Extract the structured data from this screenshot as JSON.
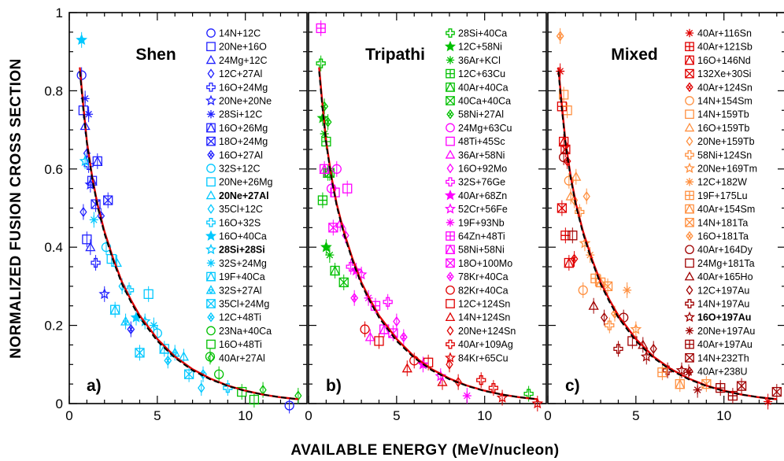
{
  "chart_data": {
    "type": "scatter",
    "ylabel": "NORMALIZED FUSION CROSS SECTION",
    "xlabel": "AVAILABLE ENERGY (MeV/nucleon)",
    "xlim": [
      0,
      13.5
    ],
    "ylim": [
      0,
      1
    ],
    "xticks": [
      {
        "value": 0,
        "label": "0"
      },
      {
        "value": 5,
        "label": "5"
      },
      {
        "value": 10,
        "label": "10"
      }
    ],
    "yticks": [
      {
        "value": 0,
        "label": "0"
      },
      {
        "value": 0.2,
        "label": "0.2"
      },
      {
        "value": 0.4,
        "label": "0.4"
      },
      {
        "value": 0.6,
        "label": "0.6"
      },
      {
        "value": 0.8,
        "label": "0.8"
      },
      {
        "value": 1,
        "label": "1"
      }
    ],
    "panels": [
      {
        "title": "Shen",
        "tag": "a)",
        "series": [
          {
            "name": "14N+12C",
            "marker": "circle",
            "color": "#2020ff"
          },
          {
            "name": "20Ne+16O",
            "marker": "square",
            "color": "#2020ff"
          },
          {
            "name": "24Mg+12C",
            "marker": "triangle",
            "color": "#2020ff"
          },
          {
            "name": "12C+27Al",
            "marker": "diamond",
            "color": "#2020ff"
          },
          {
            "name": "16O+24Mg",
            "marker": "cross",
            "color": "#2020ff"
          },
          {
            "name": "20Ne+20Ne",
            "marker": "star",
            "color": "#2020ff"
          },
          {
            "name": "28Si+12C",
            "marker": "asterisk",
            "color": "#2020ff"
          },
          {
            "name": "16O+26Mg",
            "marker": "square-tri",
            "color": "#2020ff"
          },
          {
            "name": "18O+24Mg",
            "marker": "square-x",
            "color": "#2020ff"
          },
          {
            "name": "16O+27Al",
            "marker": "diamond-x",
            "color": "#2020ff"
          },
          {
            "name": "32S+12C",
            "marker": "circle",
            "color": "#00c8ff"
          },
          {
            "name": "20Ne+26Mg",
            "marker": "square",
            "color": "#00c8ff"
          },
          {
            "name": "20Ne+27Al",
            "marker": "triangle",
            "color": "#00c8ff",
            "bold": true
          },
          {
            "name": "35Cl+12C",
            "marker": "diamond",
            "color": "#00c8ff"
          },
          {
            "name": "16O+32S",
            "marker": "cross",
            "color": "#00c8ff"
          },
          {
            "name": "16O+40Ca",
            "marker": "star-filled",
            "color": "#00c8ff"
          },
          {
            "name": "28Si+28Si",
            "marker": "star",
            "color": "#00c8ff",
            "bold": true
          },
          {
            "name": "32S+24Mg",
            "marker": "asterisk",
            "color": "#00c8ff"
          },
          {
            "name": "19F+40Ca",
            "marker": "square-tri",
            "color": "#00c8ff"
          },
          {
            "name": "32S+27Al",
            "marker": "triangle-tri",
            "color": "#00c8ff"
          },
          {
            "name": "35Cl+24Mg",
            "marker": "square-x",
            "color": "#00c8ff"
          },
          {
            "name": "12C+48Ti",
            "marker": "diamond-x",
            "color": "#00c8ff"
          },
          {
            "name": "23Na+40Ca",
            "marker": "circle",
            "color": "#00c000"
          },
          {
            "name": "16O+48Ti",
            "marker": "square",
            "color": "#00c000"
          },
          {
            "name": "40Ar+27Al",
            "marker": "diamond",
            "color": "#00c000"
          }
        ]
      },
      {
        "title": "Tripathi",
        "tag": "b)",
        "series": [
          {
            "name": "28Si+40Ca",
            "marker": "cross",
            "color": "#00c000"
          },
          {
            "name": "12C+58Ni",
            "marker": "star-filled",
            "color": "#00c000"
          },
          {
            "name": "36Ar+KCl",
            "marker": "asterisk",
            "color": "#00c000"
          },
          {
            "name": "12C+63Cu",
            "marker": "square-plus",
            "color": "#00c000"
          },
          {
            "name": "40Ar+40Ca",
            "marker": "square-tri",
            "color": "#00c000"
          },
          {
            "name": "40Ca+40Ca",
            "marker": "square-x",
            "color": "#00c000"
          },
          {
            "name": "58Ni+27Al",
            "marker": "diamond-x",
            "color": "#00c000"
          },
          {
            "name": "24Mg+63Cu",
            "marker": "circle",
            "color": "#ff00ff"
          },
          {
            "name": "48Ti+45Sc",
            "marker": "square",
            "color": "#ff00ff"
          },
          {
            "name": "36Ar+58Ni",
            "marker": "triangle",
            "color": "#ff00ff"
          },
          {
            "name": "16O+92Mo",
            "marker": "diamond",
            "color": "#ff00ff"
          },
          {
            "name": "32S+76Ge",
            "marker": "cross",
            "color": "#ff00ff"
          },
          {
            "name": "40Ar+68Zn",
            "marker": "star-filled",
            "color": "#ff00ff"
          },
          {
            "name": "52Cr+56Fe",
            "marker": "star",
            "color": "#ff00ff"
          },
          {
            "name": "19F+93Nb",
            "marker": "asterisk",
            "color": "#ff00ff"
          },
          {
            "name": "64Zn+48Ti",
            "marker": "square-plus",
            "color": "#ff00ff"
          },
          {
            "name": "58Ni+58Ni",
            "marker": "square-tri",
            "color": "#ff00ff"
          },
          {
            "name": "18O+100Mo",
            "marker": "square-x",
            "color": "#ff00ff"
          },
          {
            "name": "78Kr+40Ca",
            "marker": "diamond-x",
            "color": "#ff00ff"
          },
          {
            "name": "82Kr+40Ca",
            "marker": "circle",
            "color": "#e00000"
          },
          {
            "name": "12C+124Sn",
            "marker": "square",
            "color": "#e00000"
          },
          {
            "name": "14N+124Sn",
            "marker": "triangle",
            "color": "#e00000"
          },
          {
            "name": "20Ne+124Sn",
            "marker": "diamond",
            "color": "#e00000"
          },
          {
            "name": "40Ar+109Ag",
            "marker": "cross",
            "color": "#e00000"
          },
          {
            "name": "84Kr+65Cu",
            "marker": "star",
            "color": "#e00000"
          }
        ]
      },
      {
        "title": "Mixed",
        "tag": "c)",
        "series": [
          {
            "name": "40Ar+116Sn",
            "marker": "asterisk",
            "color": "#e00000"
          },
          {
            "name": "40Ar+121Sb",
            "marker": "square-plus",
            "color": "#e00000"
          },
          {
            "name": "16O+146Nd",
            "marker": "square-tri",
            "color": "#e00000"
          },
          {
            "name": "132Xe+30Si",
            "marker": "square-x",
            "color": "#e00000"
          },
          {
            "name": "40Ar+124Sn",
            "marker": "diamond-x",
            "color": "#e00000"
          },
          {
            "name": "14N+154Sm",
            "marker": "circle",
            "color": "#ff9040"
          },
          {
            "name": "14N+159Tb",
            "marker": "square",
            "color": "#ff9040"
          },
          {
            "name": "16O+159Tb",
            "marker": "triangle",
            "color": "#ff9040"
          },
          {
            "name": "20Ne+159Tb",
            "marker": "diamond",
            "color": "#ff9040"
          },
          {
            "name": "58Ni+124Sn",
            "marker": "cross",
            "color": "#ff9040"
          },
          {
            "name": "20Ne+169Tm",
            "marker": "star",
            "color": "#ff9040"
          },
          {
            "name": "12C+182W",
            "marker": "asterisk",
            "color": "#ff9040"
          },
          {
            "name": "19F+175Lu",
            "marker": "square-plus",
            "color": "#ff9040"
          },
          {
            "name": "40Ar+154Sm",
            "marker": "square-tri",
            "color": "#ff9040"
          },
          {
            "name": "14N+181Ta",
            "marker": "square-x",
            "color": "#ff9040"
          },
          {
            "name": "16O+181Ta",
            "marker": "diamond-x",
            "color": "#ff9040"
          },
          {
            "name": "40Ar+164Dy",
            "marker": "circle",
            "color": "#a00000"
          },
          {
            "name": "24Mg+181Ta",
            "marker": "square",
            "color": "#a00000"
          },
          {
            "name": "40Ar+165Ho",
            "marker": "triangle",
            "color": "#a00000"
          },
          {
            "name": "12C+197Au",
            "marker": "diamond",
            "color": "#a00000"
          },
          {
            "name": "14N+197Au",
            "marker": "cross",
            "color": "#a00000"
          },
          {
            "name": "16O+197Au",
            "marker": "star",
            "color": "#a00000",
            "bold": true
          },
          {
            "name": "20Ne+197Au",
            "marker": "asterisk",
            "color": "#a00000"
          },
          {
            "name": "40Ar+197Au",
            "marker": "square-plus",
            "color": "#a00000"
          },
          {
            "name": "14N+232Th",
            "marker": "square-x",
            "color": "#a00000"
          },
          {
            "name": "40Ar+238U",
            "marker": "diamond-x",
            "color": "#a00000"
          }
        ]
      }
    ],
    "fit_curves": [
      {
        "style": "solid",
        "color": "#e00000",
        "x": [
          0.6,
          0.8,
          1.0,
          1.3,
          1.6,
          2.0,
          2.5,
          3.0,
          3.5,
          4.0,
          5.0,
          6.0,
          7.0,
          8.0,
          9.0,
          10.0,
          11.0,
          12.0,
          13.0
        ],
        "y": [
          0.86,
          0.76,
          0.67,
          0.58,
          0.51,
          0.44,
          0.37,
          0.31,
          0.265,
          0.225,
          0.165,
          0.12,
          0.088,
          0.064,
          0.046,
          0.033,
          0.023,
          0.016,
          0.011
        ]
      },
      {
        "style": "dashed",
        "color": "#000000",
        "x": [
          0.6,
          0.8,
          1.0,
          1.3,
          1.6,
          2.0,
          2.5,
          3.0,
          3.5,
          4.0,
          5.0,
          6.0,
          7.0,
          8.0,
          9.0,
          10.0,
          11.0,
          12.0,
          13.0
        ],
        "y": [
          0.85,
          0.75,
          0.665,
          0.575,
          0.505,
          0.435,
          0.365,
          0.305,
          0.26,
          0.22,
          0.16,
          0.117,
          0.085,
          0.062,
          0.045,
          0.032,
          0.023,
          0.016,
          0.011
        ]
      }
    ],
    "sample_points": [
      {
        "x": 0.7,
        "y": 0.86,
        "s": 0
      },
      {
        "x": 0.8,
        "y": 0.75,
        "s": 1
      },
      {
        "x": 0.9,
        "y": 0.69,
        "s": 2
      },
      {
        "x": 1.0,
        "y": 0.65,
        "s": 3
      },
      {
        "x": 1.1,
        "y": 0.6,
        "s": 4
      },
      {
        "x": 1.2,
        "y": 0.58,
        "s": 5
      },
      {
        "x": 0.9,
        "y": 0.78,
        "s": 6
      },
      {
        "x": 1.3,
        "y": 0.55,
        "s": 7
      },
      {
        "x": 1.5,
        "y": 0.52,
        "s": 8
      },
      {
        "x": 1.8,
        "y": 0.47,
        "s": 9
      },
      {
        "x": 2.1,
        "y": 0.42,
        "s": 10
      },
      {
        "x": 2.4,
        "y": 0.37,
        "s": 11
      },
      {
        "x": 2.7,
        "y": 0.34,
        "s": 12
      },
      {
        "x": 3.0,
        "y": 0.31,
        "s": 13
      },
      {
        "x": 3.4,
        "y": 0.28,
        "s": 14
      },
      {
        "x": 3.8,
        "y": 0.24,
        "s": 15
      },
      {
        "x": 4.3,
        "y": 0.21,
        "s": 16
      },
      {
        "x": 4.8,
        "y": 0.18,
        "s": 17
      },
      {
        "x": 5.4,
        "y": 0.15,
        "s": 18
      },
      {
        "x": 6.0,
        "y": 0.12,
        "s": 19
      },
      {
        "x": 6.8,
        "y": 0.095,
        "s": 20
      },
      {
        "x": 7.6,
        "y": 0.075,
        "s": 21
      },
      {
        "x": 8.5,
        "y": 0.055,
        "s": 22
      },
      {
        "x": 9.8,
        "y": 0.04,
        "s": 23
      },
      {
        "x": 11.0,
        "y": 0.025,
        "s": 24
      },
      {
        "x": 12.5,
        "y": 0.015,
        "s": 0
      },
      {
        "x": 1.0,
        "y": 0.42,
        "s": 1
      },
      {
        "x": 1.2,
        "y": 0.38,
        "s": 2
      },
      {
        "x": 0.8,
        "y": 0.5,
        "s": 3
      },
      {
        "x": 1.5,
        "y": 0.35,
        "s": 4
      },
      {
        "x": 2.0,
        "y": 0.3,
        "s": 5
      },
      {
        "x": 1.1,
        "y": 0.74,
        "s": 6
      },
      {
        "x": 1.6,
        "y": 0.6,
        "s": 7
      },
      {
        "x": 2.2,
        "y": 0.53,
        "s": 8
      },
      {
        "x": 3.5,
        "y": 0.18,
        "s": 9
      },
      {
        "x": 5.0,
        "y": 0.2,
        "s": 10
      },
      {
        "x": 4.5,
        "y": 0.28,
        "s": 11
      },
      {
        "x": 6.5,
        "y": 0.1,
        "s": 12
      },
      {
        "x": 7.5,
        "y": 0.05,
        "s": 13
      },
      {
        "x": 9.0,
        "y": 0.03,
        "s": 14
      },
      {
        "x": 0.7,
        "y": 0.95,
        "s": 15
      },
      {
        "x": 0.9,
        "y": 0.62,
        "s": 16
      },
      {
        "x": 1.4,
        "y": 0.45,
        "s": 17
      },
      {
        "x": 2.6,
        "y": 0.25,
        "s": 18
      },
      {
        "x": 3.2,
        "y": 0.2,
        "s": 19
      },
      {
        "x": 4.0,
        "y": 0.15,
        "s": 20
      },
      {
        "x": 5.6,
        "y": 0.11,
        "s": 21
      },
      {
        "x": 8.0,
        "y": 0.1,
        "s": 22
      },
      {
        "x": 10.5,
        "y": 0.02,
        "s": 23
      },
      {
        "x": 13.0,
        "y": 0.01,
        "s": 24
      }
    ]
  }
}
